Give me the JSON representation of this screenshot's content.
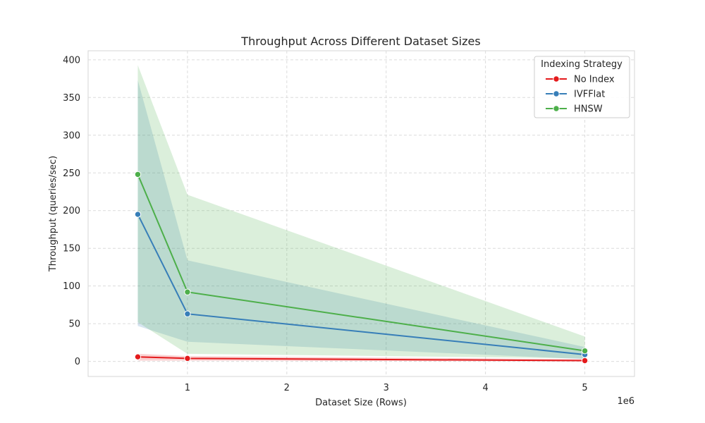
{
  "chart_data": {
    "type": "line",
    "title": "Throughput Across Different Dataset Sizes",
    "xlabel": "Dataset Size (Rows)",
    "ylabel": "Throughput (queries/sec)",
    "x_offset_label": "1e6",
    "x": [
      500000,
      1000000,
      5000000
    ],
    "xlim": [
      0,
      5500000
    ],
    "ylim": [
      -20,
      412
    ],
    "x_ticks": [
      1000000,
      2000000,
      3000000,
      4000000,
      5000000
    ],
    "x_tick_labels": [
      "1",
      "2",
      "3",
      "4",
      "5"
    ],
    "y_ticks": [
      0,
      50,
      100,
      150,
      200,
      250,
      300,
      350,
      400
    ],
    "y_tick_labels": [
      "0",
      "50",
      "100",
      "150",
      "200",
      "250",
      "300",
      "350",
      "400"
    ],
    "grid": true,
    "legend": {
      "title": "Indexing Strategy",
      "placement": "top-right"
    },
    "series": [
      {
        "name": "No Index",
        "color": "#e41a1c",
        "values": [
          6,
          4,
          1
        ],
        "ci_lower": [
          1,
          1,
          0
        ],
        "ci_upper": [
          10,
          7,
          3
        ]
      },
      {
        "name": "IVFFlat",
        "color": "#377eb8",
        "values": [
          195,
          63,
          9
        ],
        "ci_lower": [
          47,
          26,
          3
        ],
        "ci_upper": [
          373,
          134,
          19
        ]
      },
      {
        "name": "HNSW",
        "color": "#4daf4a",
        "values": [
          248,
          92,
          14
        ],
        "ci_lower": [
          52,
          10,
          4
        ],
        "ci_upper": [
          393,
          221,
          33
        ]
      }
    ]
  }
}
